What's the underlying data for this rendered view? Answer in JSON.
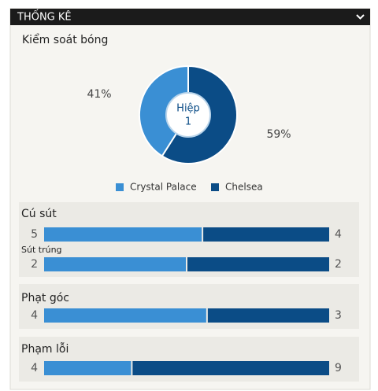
{
  "header": {
    "title": "THỐNG KÊ"
  },
  "possession": {
    "type": "pie",
    "title": "Kiểm soát bóng",
    "center_label": [
      "Hiệp",
      "1"
    ],
    "values": [
      41,
      59
    ],
    "value_labels": [
      "41%",
      "59%"
    ],
    "series": [
      "Crystal Palace",
      "Chelsea"
    ],
    "colors": [
      "#3a8fd4",
      "#0b4c86"
    ]
  },
  "stats": [
    {
      "title": "Cú sút",
      "home": 5,
      "away": 4
    },
    {
      "title": "Sút trúng",
      "home": 2,
      "away": 2
    },
    {
      "title": "Phạt góc",
      "home": 4,
      "away": 3
    },
    {
      "title": "Phạm lỗi",
      "home": 4,
      "away": 9
    }
  ]
}
